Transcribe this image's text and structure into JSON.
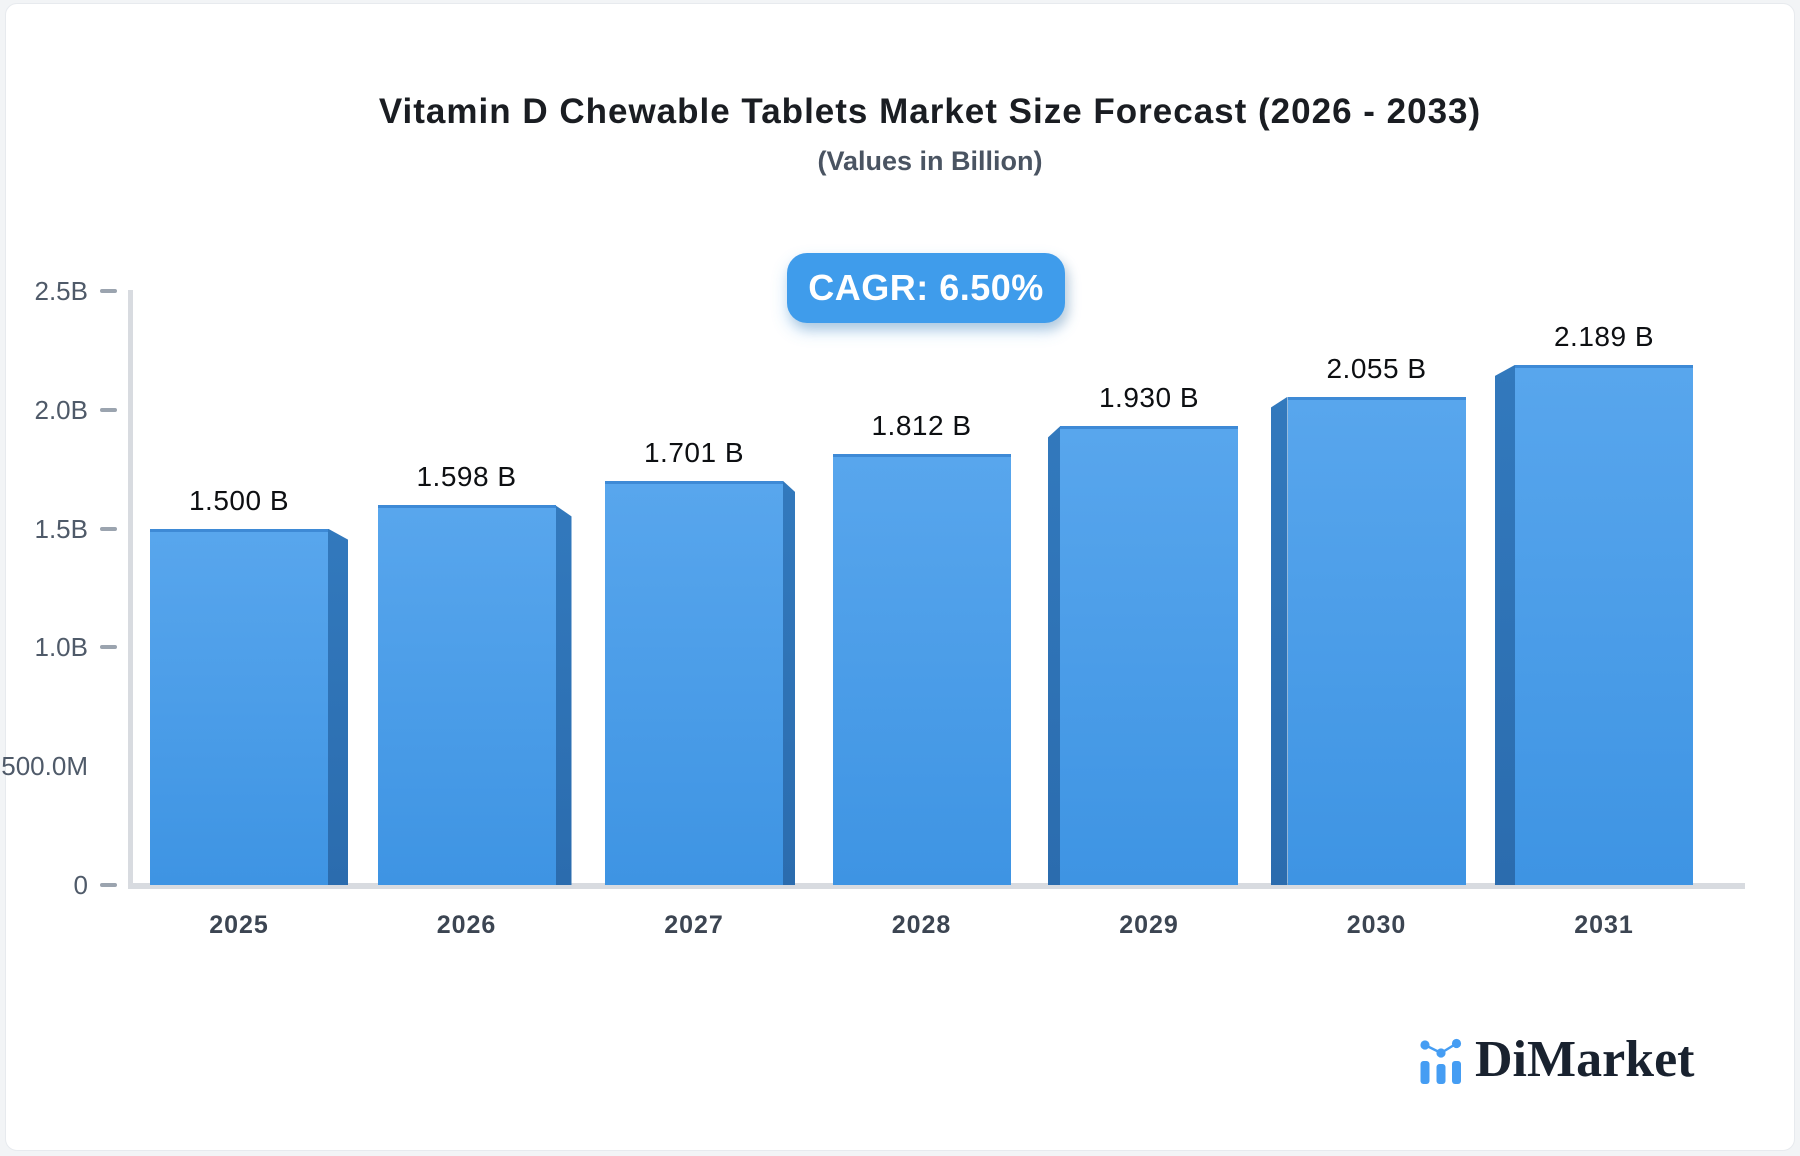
{
  "header": {
    "title": "Vitamin D Chewable Tablets Market Size Forecast (2026 - 2033)",
    "subtitle": "(Values in Billion)"
  },
  "badge": {
    "label": "CAGR: 6.50%",
    "bg_color": "#3f9ceb",
    "text_color": "#ffffff"
  },
  "brand": {
    "name": "DiMarket",
    "icon": "mini-bar-chart-logo-icon",
    "icon_color": "#459df3",
    "text_color": "#19222f"
  },
  "chart_data": {
    "type": "bar",
    "title": "Vitamin D Chewable Tablets Market Size Forecast (2026 - 2033)",
    "subtitle": "(Values in Billion)",
    "annotation": "CAGR: 6.50%",
    "categories": [
      "2025",
      "2026",
      "2027",
      "2028",
      "2029",
      "2030",
      "2031"
    ],
    "values": [
      1.5,
      1.598,
      1.701,
      1.812,
      1.93,
      2.055,
      2.189
    ],
    "value_labels": [
      "1.500 B",
      "1.598 B",
      "1.701 B",
      "1.812 B",
      "1.930 B",
      "2.055 B",
      "2.189 B"
    ],
    "y_ticks": [
      {
        "label": "2.5B",
        "value": 2.5,
        "dash": true
      },
      {
        "label": "2.0B",
        "value": 2.0,
        "dash": true
      },
      {
        "label": "1.5B",
        "value": 1.5,
        "dash": true
      },
      {
        "label": "1.0B",
        "value": 1.0,
        "dash": true
      },
      {
        "label": "500.0M",
        "value": 0.5,
        "dash": false
      },
      {
        "label": "0",
        "value": 0,
        "dash": true
      }
    ],
    "ylim": [
      0,
      2.5
    ],
    "grid": false,
    "legend": false,
    "bar_color_top": "#58a6ed",
    "bar_color_bottom": "#3e94e3",
    "bar_top_edge_color": "#3e8ad6",
    "bar_side_color_light": "#3279bd",
    "bar_side_color_dark": "#2b6cae"
  }
}
